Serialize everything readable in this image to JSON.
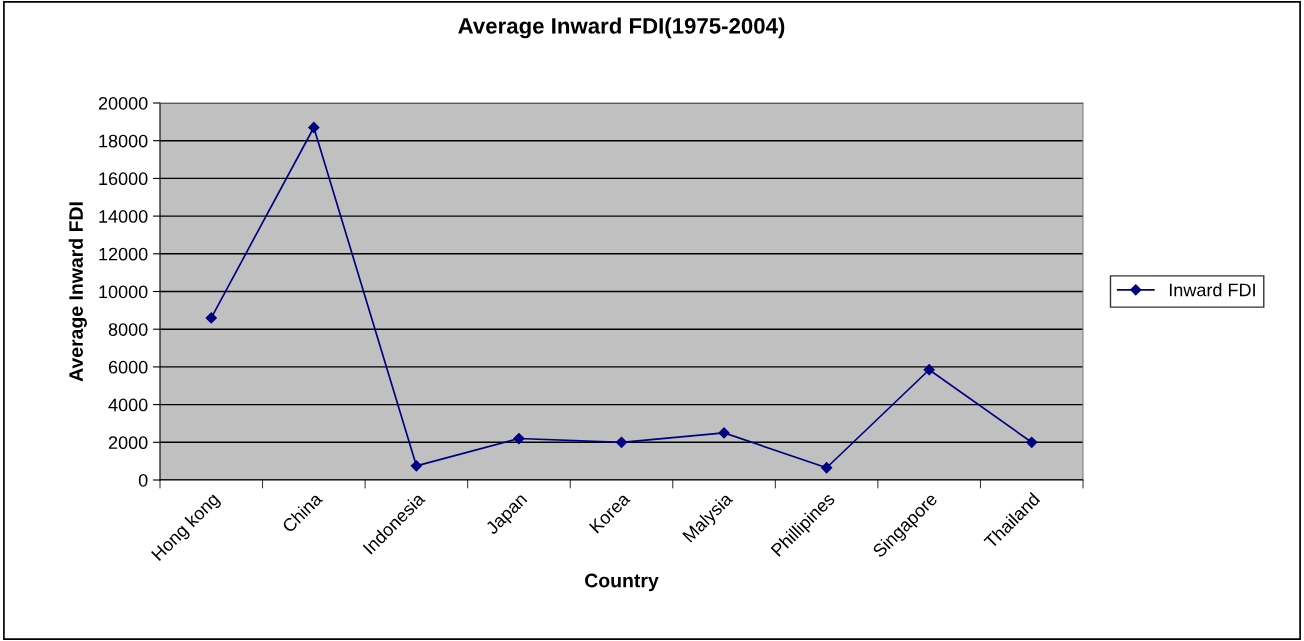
{
  "chart_data": {
    "type": "line",
    "title": "Average Inward FDI(1975-2004)",
    "xlabel": "Country",
    "ylabel": "Average Inward FDI",
    "categories": [
      "Hong kong",
      "China",
      "Indonesia",
      "Japan",
      "Korea",
      "Malysia",
      "Phillipines",
      "Singapore",
      "Thailand"
    ],
    "series": [
      {
        "name": "Inward FDI",
        "color": "#000080",
        "values": [
          8600,
          18700,
          750,
          2200,
          2000,
          2500,
          650,
          5850,
          2000
        ]
      }
    ],
    "ylim": [
      0,
      20000
    ],
    "yticks": [
      0,
      2000,
      4000,
      6000,
      8000,
      10000,
      12000,
      14000,
      16000,
      18000,
      20000
    ],
    "grid": "y",
    "legend": "right",
    "marker": "diamond",
    "line_style": "solid"
  }
}
